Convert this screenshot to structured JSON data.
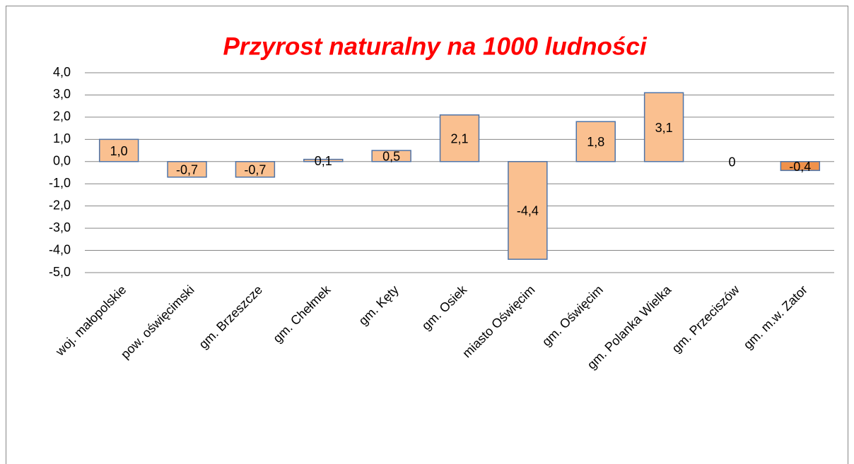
{
  "chart_data": {
    "type": "bar",
    "title": "Przyrost naturalny na 1000 ludności",
    "categories": [
      "woj. małopolskie",
      "pow. oświęcimski",
      "gm. Brzeszcze",
      "gm. Chełmek",
      "gm. Kęty",
      "gm. Osiek",
      "miasto Oświęcim",
      "gm. Oświęcim",
      "gm. Polanka Wielka",
      "gm. Przeciszów",
      "gm. m.w. Zator"
    ],
    "values": [
      1.0,
      -0.7,
      -0.7,
      0.1,
      0.5,
      2.1,
      -4.4,
      1.8,
      3.1,
      0,
      -0.4
    ],
    "value_labels": [
      "1,0",
      "-0,7",
      "-0,7",
      "0,1",
      "0,5",
      "2,1",
      "-4,4",
      "1,8",
      "3,1",
      "0",
      "-0,4"
    ],
    "colors": [
      "#fac090",
      "#fac090",
      "#fac090",
      "#fac090",
      "#fac090",
      "#fac090",
      "#fac090",
      "#fac090",
      "#fac090",
      "#fac090",
      "#f0914a"
    ],
    "edgecolor": "#4f74a8",
    "ylim": [
      -5,
      4
    ],
    "yticks": [
      {
        "value": -5,
        "label": "-5,0"
      },
      {
        "value": -4,
        "label": "-4,0"
      },
      {
        "value": -3,
        "label": "-3,0"
      },
      {
        "value": -2,
        "label": "-2,0"
      },
      {
        "value": -1,
        "label": "-1,0"
      },
      {
        "value": 0,
        "label": "0,0"
      },
      {
        "value": 1,
        "label": "1,0"
      },
      {
        "value": 2,
        "label": "2,0"
      },
      {
        "value": 3,
        "label": "3,0"
      },
      {
        "value": 4,
        "label": "4,0"
      }
    ],
    "grid": true
  }
}
